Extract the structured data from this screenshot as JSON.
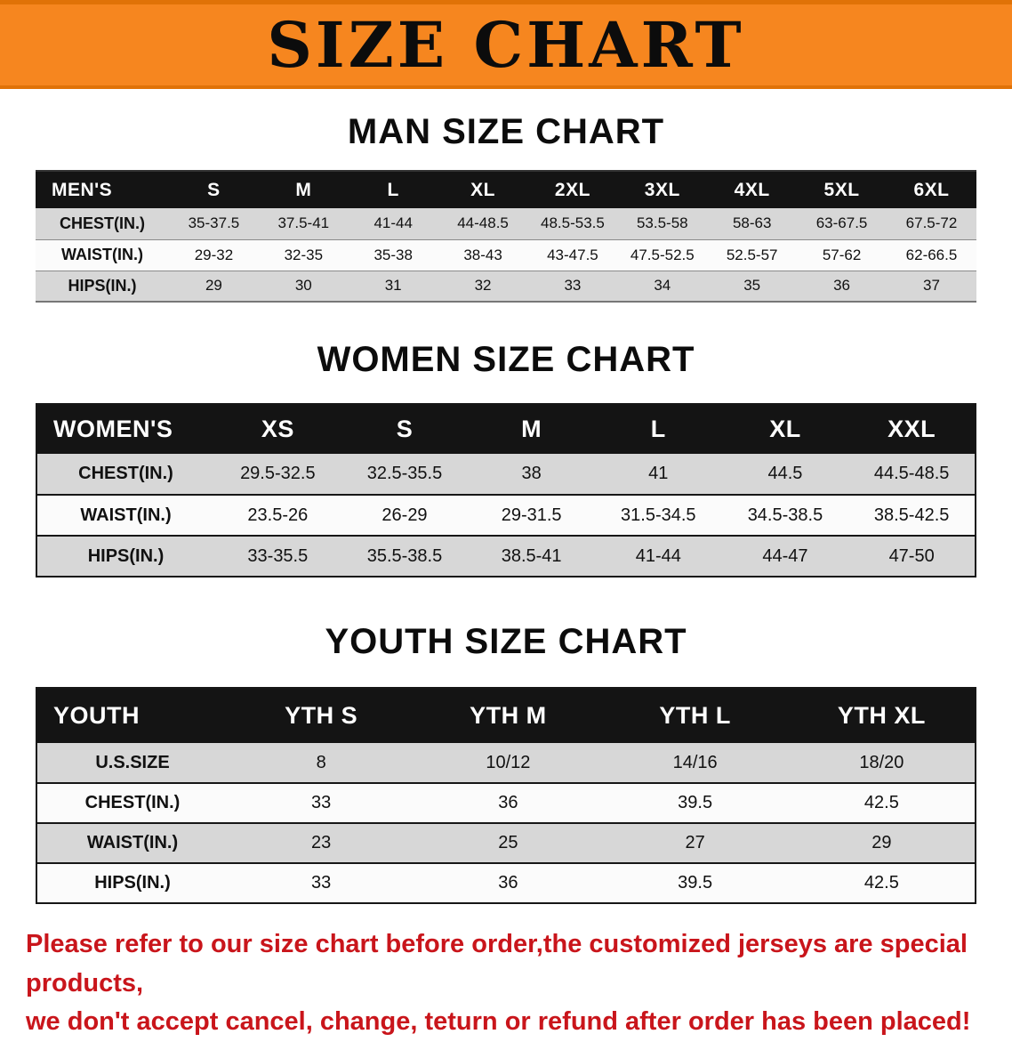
{
  "banner": {
    "title": "SIZE CHART"
  },
  "colors": {
    "banner_bg": "#F6861F",
    "header_bg": "#141414",
    "row_gray": "#D7D7D7",
    "row_white": "#FBFBFB",
    "footer_red": "#C9151B"
  },
  "sections": {
    "men": {
      "heading": "MAN SIZE CHART",
      "table": {
        "header": [
          "MEN'S",
          "S",
          "M",
          "L",
          "XL",
          "2XL",
          "3XL",
          "4XL",
          "5XL",
          "6XL"
        ],
        "rows": [
          {
            "label": "CHEST(IN.)",
            "values": [
              "35-37.5",
              "37.5-41",
              "41-44",
              "44-48.5",
              "48.5-53.5",
              "53.5-58",
              "58-63",
              "63-67.5",
              "67.5-72"
            ]
          },
          {
            "label": "WAIST(IN.)",
            "values": [
              "29-32",
              "32-35",
              "35-38",
              "38-43",
              "43-47.5",
              "47.5-52.5",
              "52.5-57",
              "57-62",
              "62-66.5"
            ]
          },
          {
            "label": "HIPS(IN.)",
            "values": [
              "29",
              "30",
              "31",
              "32",
              "33",
              "34",
              "35",
              "36",
              "37"
            ]
          }
        ]
      }
    },
    "women": {
      "heading": "WOMEN SIZE CHART",
      "table": {
        "header": [
          "WOMEN'S",
          "XS",
          "S",
          "M",
          "L",
          "XL",
          "XXL"
        ],
        "rows": [
          {
            "label": "CHEST(IN.)",
            "values": [
              "29.5-32.5",
              "32.5-35.5",
              "38",
              "41",
              "44.5",
              "44.5-48.5"
            ]
          },
          {
            "label": "WAIST(IN.)",
            "values": [
              "23.5-26",
              "26-29",
              "29-31.5",
              "31.5-34.5",
              "34.5-38.5",
              "38.5-42.5"
            ]
          },
          {
            "label": "HIPS(IN.)",
            "values": [
              "33-35.5",
              "35.5-38.5",
              "38.5-41",
              "41-44",
              "44-47",
              "47-50"
            ]
          }
        ]
      }
    },
    "youth": {
      "heading": "YOUTH SIZE CHART",
      "table": {
        "header": [
          "YOUTH",
          "YTH S",
          "YTH M",
          "YTH L",
          "YTH XL"
        ],
        "rows": [
          {
            "label": "U.S.SIZE",
            "values": [
              "8",
              "10/12",
              "14/16",
              "18/20"
            ]
          },
          {
            "label": "CHEST(IN.)",
            "values": [
              "33",
              "36",
              "39.5",
              "42.5"
            ]
          },
          {
            "label": "WAIST(IN.)",
            "values": [
              "23",
              "25",
              "27",
              "29"
            ]
          },
          {
            "label": "HIPS(IN.)",
            "values": [
              "33",
              "36",
              "39.5",
              "42.5"
            ]
          }
        ]
      }
    }
  },
  "footer": {
    "line1": "Please refer to our size chart before order,the customized jerseys are special products,",
    "line2": "we don't accept cancel, change, teturn or refund after order has been placed!"
  }
}
